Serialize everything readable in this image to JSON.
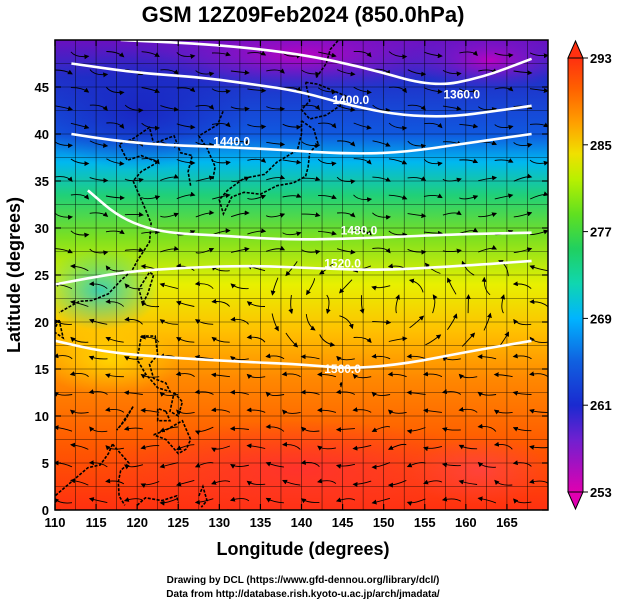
{
  "title": "GSM 12Z09Feb2024 (850.0hPa)",
  "xlabel": "Longitude (degrees)",
  "ylabel": "Latitude  (degrees)",
  "credit_line1": "Drawing by DCL (https://www.gfd-dennou.org/library/dcl/)",
  "credit_line2": "Data from http://database.rish.kyoto-u.ac.jp/arch/jmadata/",
  "chart_data": {
    "type": "heatmap",
    "xlim": [
      110,
      170
    ],
    "ylim": [
      0,
      50
    ],
    "x_ticks": [
      110,
      115,
      120,
      125,
      130,
      135,
      140,
      145,
      150,
      155,
      160,
      165
    ],
    "y_ticks": [
      0,
      5,
      10,
      15,
      20,
      25,
      30,
      35,
      40,
      45
    ],
    "colorbar": {
      "range": [
        253,
        293
      ],
      "ticks": [
        253,
        261,
        269,
        277,
        285,
        293
      ],
      "colors": [
        "#e000b0",
        "#7020d0",
        "#1a2ad0",
        "#1060e0",
        "#00b4ff",
        "#10d6b0",
        "#20d060",
        "#60e020",
        "#b8f000",
        "#f0e000",
        "#ffa000",
        "#ff6000",
        "#ff3010"
      ],
      "extend": "both"
    },
    "height_contours": [
      {
        "label": "1360.0",
        "value": 1360,
        "label_lon": 159.5,
        "label_lat": 43.8,
        "path": [
          [
            118,
            50
          ],
          [
            130,
            49.5
          ],
          [
            140,
            48.5
          ],
          [
            148,
            47
          ],
          [
            156,
            45
          ],
          [
            162,
            46
          ],
          [
            168,
            48
          ]
        ]
      },
      {
        "label": "1400.0",
        "value": 1400,
        "label_lon": 146,
        "label_lat": 43.2,
        "path": [
          [
            112,
            47.5
          ],
          [
            120,
            46.5
          ],
          [
            128,
            46
          ],
          [
            134,
            45.3
          ],
          [
            140,
            44.5
          ],
          [
            146,
            43
          ],
          [
            152,
            42
          ],
          [
            158,
            41.8
          ],
          [
            164,
            42.5
          ],
          [
            168,
            43
          ]
        ]
      },
      {
        "label": "1440.0",
        "value": 1440,
        "label_lon": 131.5,
        "label_lat": 38.8,
        "path": [
          [
            112,
            40
          ],
          [
            118,
            39.2
          ],
          [
            124,
            38.8
          ],
          [
            131,
            38.6
          ],
          [
            138,
            38.3
          ],
          [
            145,
            37.9
          ],
          [
            152,
            38
          ],
          [
            160,
            39
          ],
          [
            168,
            40
          ]
        ]
      },
      {
        "label": "1480.0",
        "value": 1480,
        "label_lon": 147,
        "label_lat": 29.3,
        "path": [
          [
            114,
            34
          ],
          [
            118,
            31
          ],
          [
            123,
            29.5
          ],
          [
            130,
            29.2
          ],
          [
            137,
            28.8
          ],
          [
            143,
            28.8
          ],
          [
            150,
            29
          ],
          [
            158,
            29.3
          ],
          [
            168,
            29.5
          ]
        ]
      },
      {
        "label": "1520.0",
        "value": 1520,
        "label_lon": 145,
        "label_lat": 25.8,
        "path": [
          [
            110,
            24
          ],
          [
            118,
            25.3
          ],
          [
            126,
            25.8
          ],
          [
            134,
            26
          ],
          [
            142,
            25.7
          ],
          [
            150,
            25.5
          ],
          [
            160,
            26
          ],
          [
            168,
            26.5
          ]
        ]
      },
      {
        "label": "1560.0",
        "value": 1560,
        "label_lon": 145,
        "label_lat": 14.6,
        "path": [
          [
            110,
            18
          ],
          [
            116,
            16.8
          ],
          [
            124,
            16.2
          ],
          [
            132,
            15.8
          ],
          [
            140,
            15.5
          ],
          [
            146,
            15
          ],
          [
            153,
            15.6
          ],
          [
            160,
            16.8
          ],
          [
            168,
            18
          ]
        ]
      }
    ]
  }
}
